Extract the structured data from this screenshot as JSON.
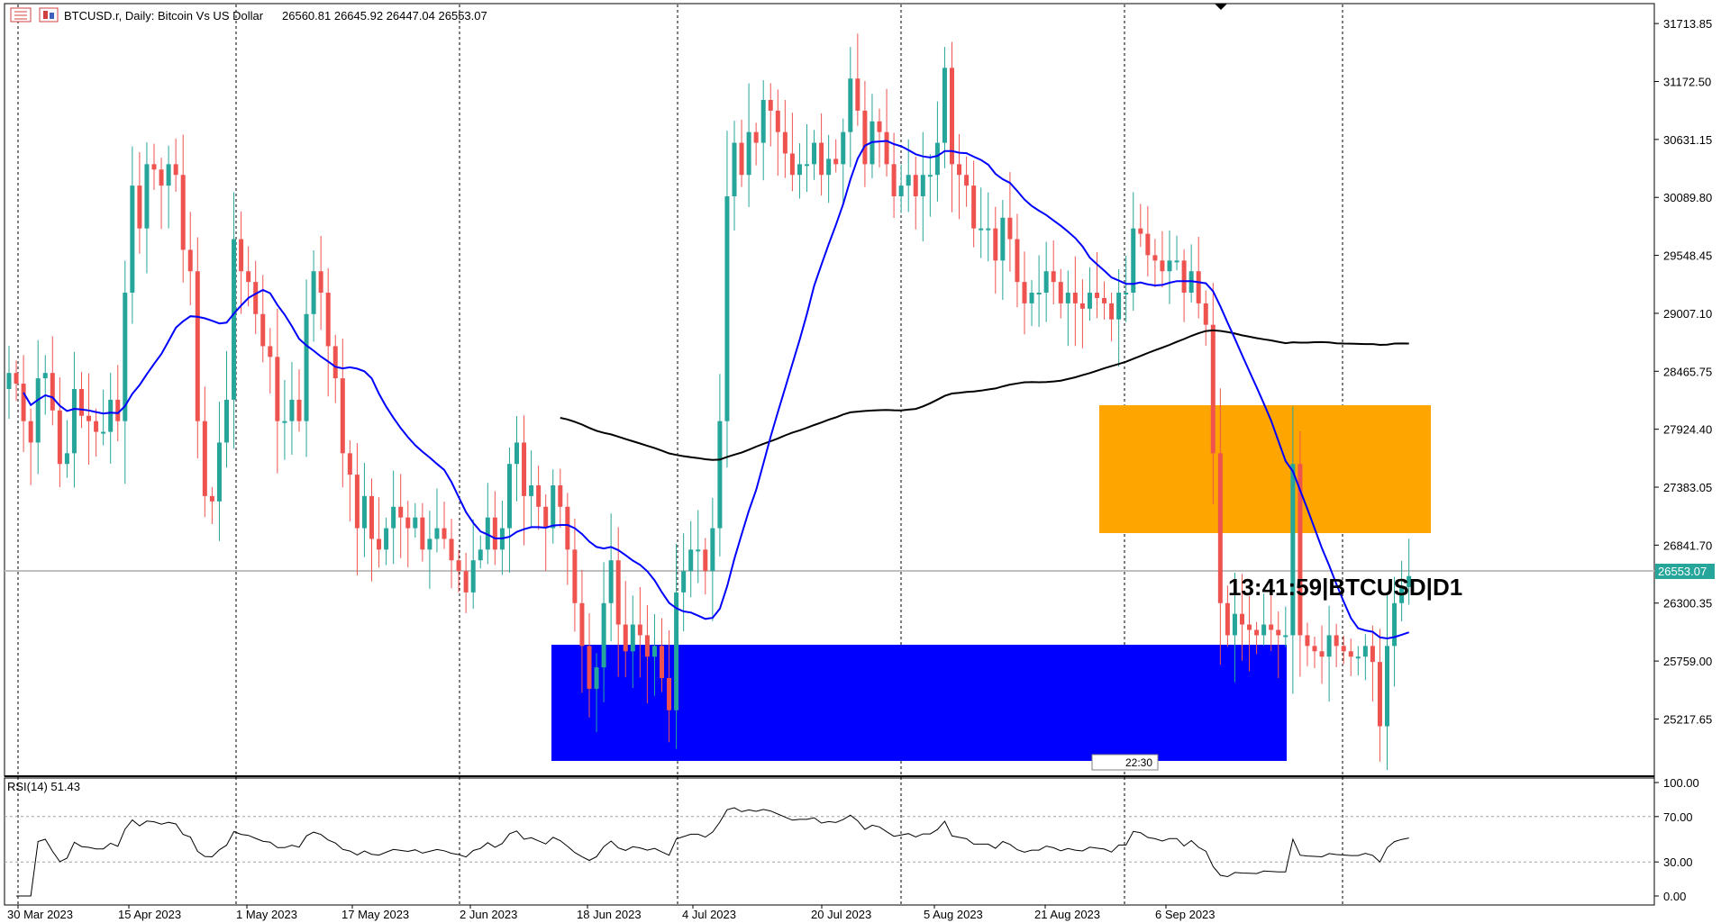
{
  "header": {
    "symbol_title": "BTCUSD.r, Daily:  Bitcoin Vs US Dollar",
    "ohlc": "26560.81 26645.92 26447.04 26553.07",
    "icons": [
      "chart-window-icon",
      "symbol-icon"
    ]
  },
  "timer_label": "13:41:59|BTCUSD|D1",
  "crosshair_label": "22:30",
  "rsi": {
    "label": "RSI(14) 51.43",
    "levels": [
      "100.00",
      "70.00",
      "30.00",
      "0.00"
    ],
    "min": 0,
    "max": 100
  },
  "colors": {
    "bull": "#26a69a",
    "bear": "#ef5350",
    "ma_fast": "#0000ff",
    "ma_slow": "#000000",
    "supply_zone": "#ffa500",
    "demand_zone": "#0000ff",
    "price_line": "#c0c0c0",
    "price_tag": "#26a69a"
  },
  "chart_data": {
    "type": "candlestick",
    "price_min": 24700,
    "price_max": 31900,
    "price_ticks": [
      "31713.85",
      "31172.50",
      "30631.15",
      "30089.80",
      "29548.45",
      "29007.10",
      "28465.75",
      "27924.40",
      "27383.05",
      "26841.70",
      "26300.35",
      "25759.00",
      "25217.65"
    ],
    "current_price": "26553.07",
    "date_labels": [
      "30 Mar 2023",
      "15 Apr 2023",
      "1 May 2023",
      "17 May 2023",
      "2 Jun 2023",
      "18 Jun 2023",
      "4 Jul 2023",
      "20 Jul 2023",
      "5 Aug 2023",
      "21 Aug 2023",
      "6 Sep 2023"
    ],
    "closes": [
      28450,
      28350,
      28000,
      27800,
      28400,
      28450,
      28100,
      27600,
      27700,
      28300,
      28050,
      28000,
      27900,
      27900,
      28200,
      28000,
      29200,
      30200,
      29800,
      30400,
      30350,
      30200,
      30400,
      30300,
      29600,
      29400,
      28000,
      27300,
      27250,
      27800,
      28200,
      29700,
      29400,
      29300,
      29000,
      28700,
      28600,
      28000,
      28000,
      28200,
      28000,
      29000,
      29400,
      29200,
      28700,
      28400,
      27700,
      27500,
      27000,
      27300,
      26900,
      26800,
      27000,
      27200,
      27100,
      27000,
      27100,
      26800,
      26900,
      27000,
      26900,
      26700,
      26600,
      26400,
      26700,
      26800,
      27100,
      26800,
      27000,
      27600,
      27800,
      27300,
      27400,
      27200,
      27000,
      27400,
      27200,
      26800,
      26300,
      25900,
      25500,
      25700,
      26300,
      26700,
      26100,
      25850,
      26100,
      26000,
      25800,
      25900,
      25600,
      25300,
      26400,
      26600,
      26800,
      26800,
      26600,
      27000,
      28000,
      30100,
      30600,
      30300,
      30700,
      30600,
      31000,
      30900,
      30700,
      30500,
      30300,
      30400,
      30400,
      30600,
      30300,
      30450,
      30400,
      30700,
      31200,
      30900,
      30400,
      30800,
      30700,
      30400,
      30100,
      30200,
      30300,
      30100,
      30300,
      30300,
      30600,
      31300,
      30400,
      30300,
      30200,
      29800,
      29800,
      29800,
      29500,
      29900,
      29700,
      29300,
      29100,
      29200,
      29200,
      29400,
      29300,
      29100,
      29200,
      29100,
      29050,
      29200,
      29150,
      29100,
      28950,
      29200,
      29200,
      29800,
      29750,
      29550,
      29500,
      29400,
      29500,
      29500,
      29200,
      29400,
      29100,
      28900,
      27700,
      26300,
      26000,
      26200,
      26100,
      26050,
      26000,
      26100,
      26050,
      26000,
      26000,
      27600,
      26000,
      25900,
      25850,
      25800,
      26000,
      25900,
      25850,
      25800,
      25800,
      25900,
      25750,
      25150,
      25900,
      26300,
      26450,
      26553
    ]
  }
}
